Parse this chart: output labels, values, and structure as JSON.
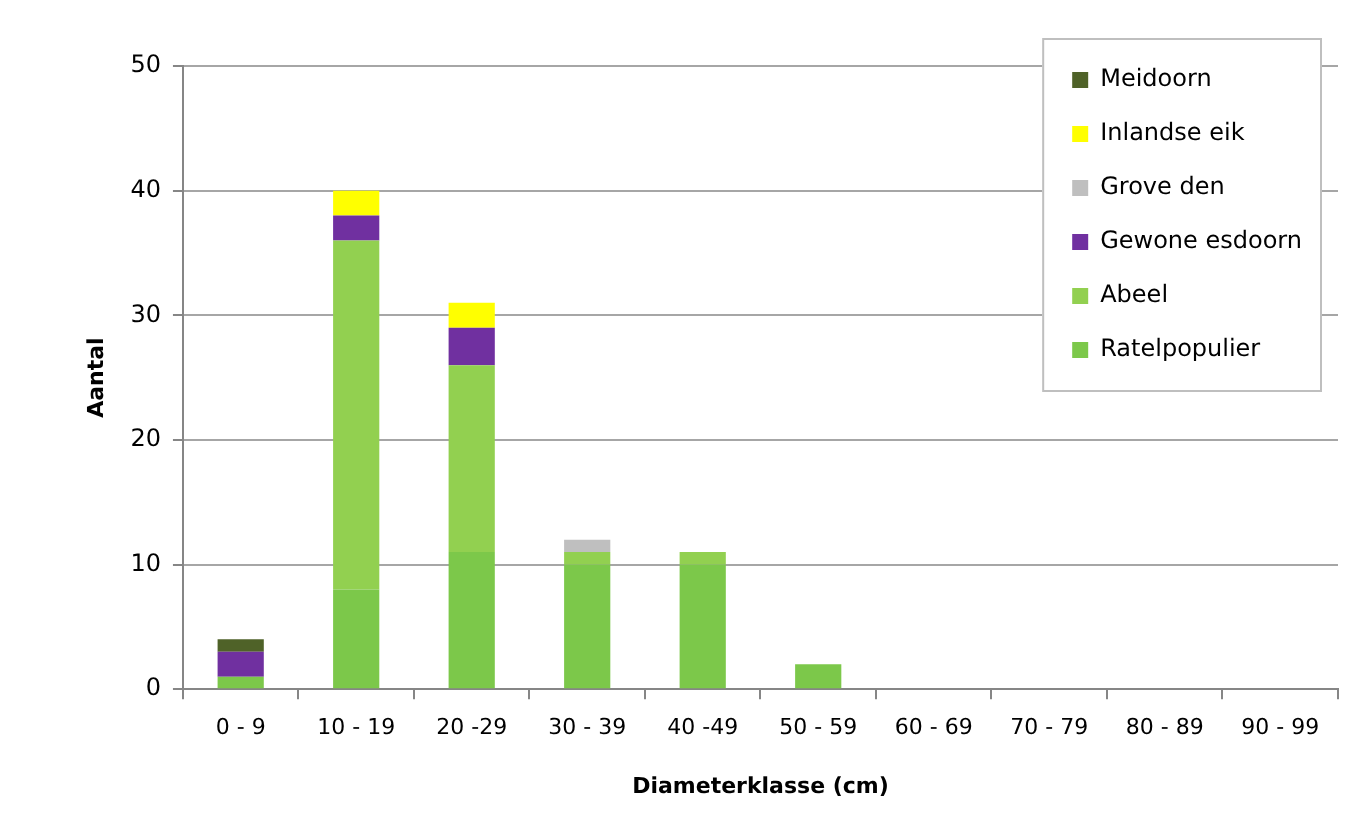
{
  "chart_data": {
    "type": "bar",
    "xlabel": "Diameterklasse (cm)",
    "ylabel": "Aantal",
    "categories": [
      "0 - 9",
      "10 - 19",
      "20 -29",
      "30 - 39",
      "40 -49",
      "50 - 59",
      "60 - 69",
      "70 - 79",
      "80 - 89",
      "90 - 99"
    ],
    "series": [
      {
        "name": "Ratelpopulier",
        "color": "#7cc84a",
        "values": [
          1,
          8,
          11,
          10,
          10,
          2,
          0,
          0,
          0,
          0
        ]
      },
      {
        "name": "Abeel",
        "color": "#92d050",
        "values": [
          0,
          28,
          15,
          1,
          1,
          0,
          0,
          0,
          0,
          0
        ]
      },
      {
        "name": "Gewone esdoorn",
        "color": "#7030a0",
        "values": [
          2,
          2,
          3,
          0,
          0,
          0,
          0,
          0,
          0,
          0
        ]
      },
      {
        "name": "Grove den",
        "color": "#bfbfbf",
        "values": [
          0,
          0,
          0,
          1,
          0,
          0,
          0,
          0,
          0,
          0
        ]
      },
      {
        "name": "Inlandse eik",
        "color": "#ffff00",
        "values": [
          0,
          2,
          2,
          0,
          0,
          0,
          0,
          0,
          0,
          0
        ]
      },
      {
        "name": "Meidoorn",
        "color": "#4f6228",
        "values": [
          1,
          0,
          0,
          0,
          0,
          0,
          0,
          0,
          0,
          0
        ]
      }
    ],
    "stacked": true,
    "ylim": [
      0,
      50
    ],
    "yticks": [
      0,
      10,
      20,
      30,
      40,
      50
    ],
    "grid": "y",
    "legend": "top right"
  }
}
